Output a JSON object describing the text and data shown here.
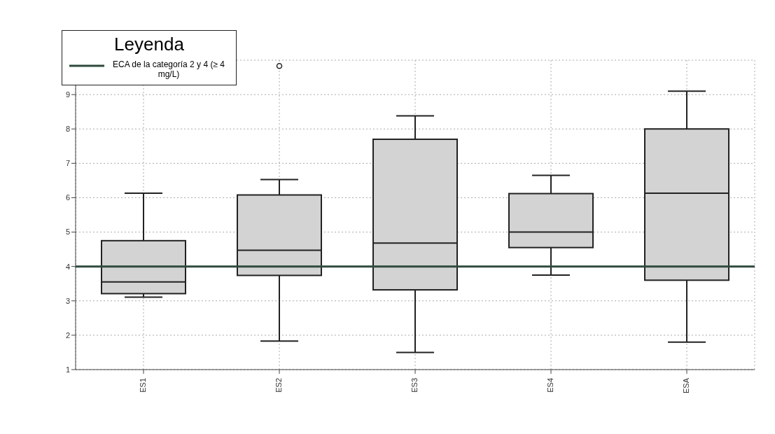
{
  "chart_data": {
    "type": "box",
    "categories": [
      "ES1",
      "ES2",
      "ES3",
      "ES4",
      "ESA"
    ],
    "boxes": [
      {
        "low": 3.11,
        "q1": 3.21,
        "median": 3.55,
        "q3": 4.75,
        "high": 6.13
      },
      {
        "low": 1.83,
        "q1": 3.74,
        "median": 4.47,
        "q3": 6.08,
        "high": 6.53,
        "outliers": [
          9.83
        ]
      },
      {
        "low": 1.5,
        "q1": 3.32,
        "median": 4.68,
        "q3": 7.7,
        "high": 8.38
      },
      {
        "low": 3.75,
        "q1": 4.55,
        "median": 5.0,
        "q3": 6.12,
        "high": 6.65
      },
      {
        "low": 1.8,
        "q1": 3.6,
        "median": 6.13,
        "q3": 8.0,
        "high": 9.1
      }
    ],
    "color": "#d3d3d3",
    "ylim": [
      1,
      10
    ],
    "yticks": [
      1,
      2,
      3,
      4,
      5,
      6,
      7,
      8,
      9
    ],
    "ref_lines": [
      {
        "axis": "y",
        "value": 4,
        "label": "ECA de la categoría 2 y 4 (≥ 4 mg/L)",
        "color": "#2f4a3c",
        "line_style": "solid"
      }
    ],
    "legend_title": "Leyenda",
    "legend": "top left",
    "grid": true
  }
}
